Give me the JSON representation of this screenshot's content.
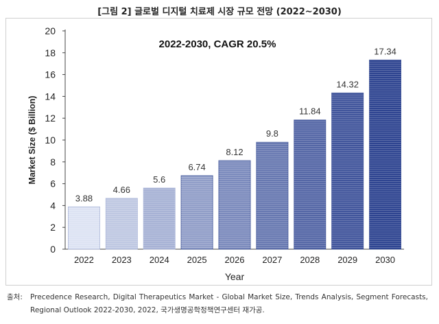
{
  "figure_title": "[그림 2] 글로벌 디지털 치료제 시장 규모 전망 (2022~2030)",
  "source": {
    "label": "출처:",
    "text": "Precedence Research, Digital Therapeutics Market - Global Market Size, Trends Analysis, Segment Forecasts, Regional Outlook 2022-2030, 2022, 국가생명공학정책연구센터 재가공."
  },
  "chart_data": {
    "type": "bar",
    "title": "2022-2030, CAGR 20.5%",
    "xlabel": "Year",
    "ylabel": "Market Size ($ Billion)",
    "ylim": [
      0,
      20
    ],
    "yticks": [
      0,
      2,
      4,
      6,
      8,
      10,
      12,
      14,
      16,
      18,
      20
    ],
    "categories": [
      "2022",
      "2023",
      "2024",
      "2025",
      "2026",
      "2027",
      "2028",
      "2029",
      "2030"
    ],
    "values": [
      3.88,
      4.66,
      5.6,
      6.74,
      8.12,
      9.8,
      11.84,
      14.32,
      17.34
    ],
    "data_labels": [
      "3.88",
      "4.66",
      "5.6",
      "6.74",
      "8.12",
      "9.8",
      "11.84",
      "14.32",
      "17.34"
    ],
    "grid": false,
    "legend": "none",
    "colors": {
      "bar_light": "#dde3f3",
      "bar_dark": "#2f4591",
      "axis": "#444444"
    }
  }
}
